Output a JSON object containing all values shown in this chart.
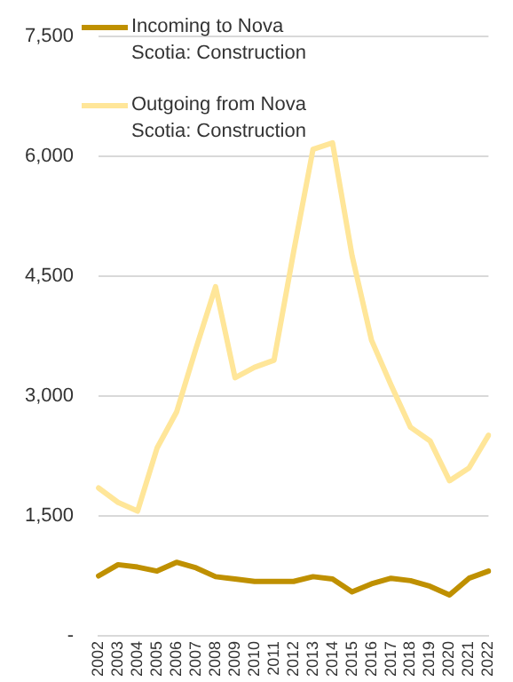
{
  "chart_data": {
    "type": "line",
    "categories": [
      "2002",
      "2003",
      "2004",
      "2005",
      "2006",
      "2007",
      "2008",
      "2009",
      "2010",
      "2011",
      "2012",
      "2013",
      "2014",
      "2015",
      "2016",
      "2017",
      "2018",
      "2019",
      "2020",
      "2021",
      "2022"
    ],
    "series": [
      {
        "name": "Incoming to Nova Scotia: Construction",
        "color": "#bf9000",
        "values": [
          750,
          890,
          860,
          810,
          920,
          850,
          740,
          710,
          680,
          680,
          680,
          740,
          710,
          550,
          650,
          720,
          690,
          620,
          510,
          720,
          810
        ]
      },
      {
        "name": "Outgoing from Nova Scotia: Construction",
        "color": "#ffe699",
        "values": [
          1850,
          1670,
          1560,
          2350,
          2800,
          3600,
          4370,
          3230,
          3360,
          3450,
          4800,
          6090,
          6170,
          4760,
          3700,
          3140,
          2610,
          2440,
          1940,
          2100,
          2510
        ]
      }
    ],
    "ylim": [
      0,
      7500
    ],
    "yticks": [
      {
        "value": 0,
        "label": "-"
      },
      {
        "value": 1500,
        "label": "1,500"
      },
      {
        "value": 3000,
        "label": "3,000"
      },
      {
        "value": 4500,
        "label": "4,500"
      },
      {
        "value": 6000,
        "label": "6,000"
      },
      {
        "value": 7500,
        "label": "7,500"
      }
    ],
    "grid": "y",
    "legend": "top left",
    "marker": "none",
    "line_style": "solid"
  }
}
